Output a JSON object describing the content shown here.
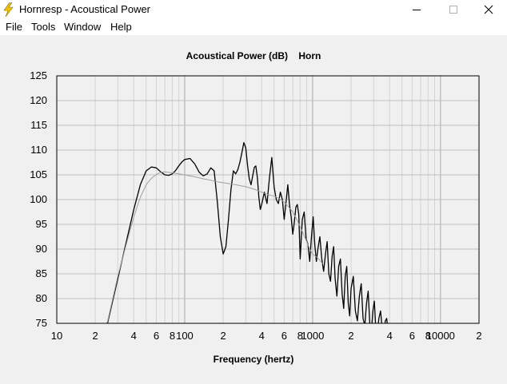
{
  "window": {
    "title": "Hornresp - Acoustical Power",
    "icon": "lightning-bolt-icon"
  },
  "menu": {
    "items": [
      {
        "label": "File"
      },
      {
        "label": "Tools"
      },
      {
        "label": "Window"
      },
      {
        "label": "Help"
      }
    ]
  },
  "chart_data": {
    "type": "line",
    "title": "Acoustical Power (dB)    Horn",
    "xlabel": "Frequency (hertz)",
    "ylabel": "",
    "x_scale": "log",
    "xlim": [
      10,
      20000
    ],
    "ylim": [
      75,
      125
    ],
    "grid": true,
    "x_tick_labels": [
      {
        "f": 10,
        "label": "10"
      },
      {
        "f": 20,
        "label": "2"
      },
      {
        "f": 40,
        "label": "4"
      },
      {
        "f": 60,
        "label": "6"
      },
      {
        "f": 80,
        "label": "8"
      },
      {
        "f": 100,
        "label": "100"
      },
      {
        "f": 200,
        "label": "2"
      },
      {
        "f": 400,
        "label": "4"
      },
      {
        "f": 600,
        "label": "6"
      },
      {
        "f": 800,
        "label": "8"
      },
      {
        "f": 1000,
        "label": "1000"
      },
      {
        "f": 2000,
        "label": "2"
      },
      {
        "f": 4000,
        "label": "4"
      },
      {
        "f": 6000,
        "label": "6"
      },
      {
        "f": 8000,
        "label": "8"
      },
      {
        "f": 10000,
        "label": "10000"
      },
      {
        "f": 20000,
        "label": "2"
      }
    ],
    "y_ticks": [
      75,
      80,
      85,
      90,
      95,
      100,
      105,
      110,
      115,
      120,
      125
    ],
    "series": [
      {
        "color": "#000000",
        "x": [
          20,
          25,
          30,
          35,
          40,
          45,
          50,
          55,
          60,
          65,
          70,
          75,
          80,
          85,
          90,
          95,
          100,
          110,
          120,
          130,
          140,
          150,
          160,
          170,
          180,
          190,
          200,
          210,
          220,
          230,
          240,
          250,
          260,
          270,
          280,
          290,
          300,
          310,
          320,
          330,
          340,
          350,
          360,
          370,
          380,
          390,
          400,
          420,
          440,
          460,
          480,
          500,
          520,
          540,
          560,
          580,
          600,
          620,
          640,
          660,
          680,
          700,
          720,
          740,
          760,
          780,
          800,
          830,
          860,
          890,
          920,
          950,
          980,
          1010,
          1040,
          1070,
          1100,
          1140,
          1180,
          1220,
          1260,
          1300,
          1340,
          1380,
          1420,
          1460,
          1500,
          1550,
          1600,
          1650,
          1700,
          1750,
          1800,
          1850,
          1900,
          1950,
          2000,
          2080,
          2160,
          2240,
          2320,
          2400,
          2480,
          2560,
          2640,
          2720,
          2800,
          2880,
          2960,
          3040,
          3120,
          3200,
          3300,
          3400,
          3500,
          3600,
          3700,
          3800,
          3900,
          4000
        ],
        "y": [
          69.5,
          75.2,
          84.0,
          91.5,
          98.0,
          103.0,
          105.8,
          106.6,
          106.4,
          105.6,
          105.0,
          104.9,
          105.2,
          105.9,
          106.8,
          107.6,
          108.1,
          108.3,
          107.2,
          105.5,
          104.8,
          105.2,
          106.4,
          105.8,
          99.5,
          92.5,
          89.0,
          90.5,
          96.0,
          102.0,
          105.8,
          105.2,
          106.0,
          107.5,
          109.5,
          111.5,
          110.5,
          107.0,
          104.2,
          103.0,
          104.8,
          106.5,
          106.8,
          104.5,
          100.5,
          98.0,
          99.0,
          101.5,
          99.2,
          104.5,
          108.5,
          102.5,
          100.0,
          99.2,
          101.5,
          100.0,
          96.0,
          99.5,
          103.0,
          99.0,
          96.5,
          93.0,
          95.5,
          98.5,
          99.0,
          97.0,
          88.0,
          96.0,
          97.5,
          92.0,
          91.0,
          87.5,
          92.5,
          96.5,
          91.0,
          87.5,
          90.0,
          92.5,
          88.0,
          85.5,
          89.0,
          91.5,
          85.0,
          83.5,
          88.5,
          90.5,
          84.0,
          80.5,
          86.5,
          88.0,
          81.0,
          78.0,
          84.5,
          86.5,
          79.0,
          76.5,
          82.0,
          84.5,
          77.5,
          75.5,
          80.5,
          83.0,
          76.0,
          74.5,
          79.0,
          81.5,
          75.0,
          73.5,
          77.5,
          79.5,
          74.0,
          73.0,
          76.0,
          77.5,
          74.0,
          72.5,
          75.5,
          76.0,
          73.0,
          72.0
        ]
      },
      {
        "color": "#a0a0a0",
        "x": [
          20,
          25,
          30,
          35,
          40,
          45,
          50,
          55,
          60,
          65,
          70,
          75,
          80,
          90,
          100,
          120,
          140,
          160,
          180,
          200,
          250,
          300,
          350,
          400,
          450,
          500,
          550,
          600,
          650,
          700,
          750,
          800,
          850,
          900,
          950,
          1000,
          1100,
          1200
        ],
        "y": [
          69.0,
          75.5,
          84.5,
          91.0,
          96.5,
          100.5,
          103.0,
          104.3,
          105.1,
          105.5,
          105.6,
          105.5,
          105.4,
          105.2,
          105.0,
          104.6,
          104.2,
          103.9,
          103.6,
          103.4,
          103.0,
          102.6,
          102.1,
          101.5,
          101.0,
          100.7,
          100.2,
          99.5,
          98.5,
          97.5,
          96.0,
          94.5,
          93.0,
          91.5,
          90.0,
          89.0,
          88.2,
          87.0
        ]
      }
    ]
  }
}
